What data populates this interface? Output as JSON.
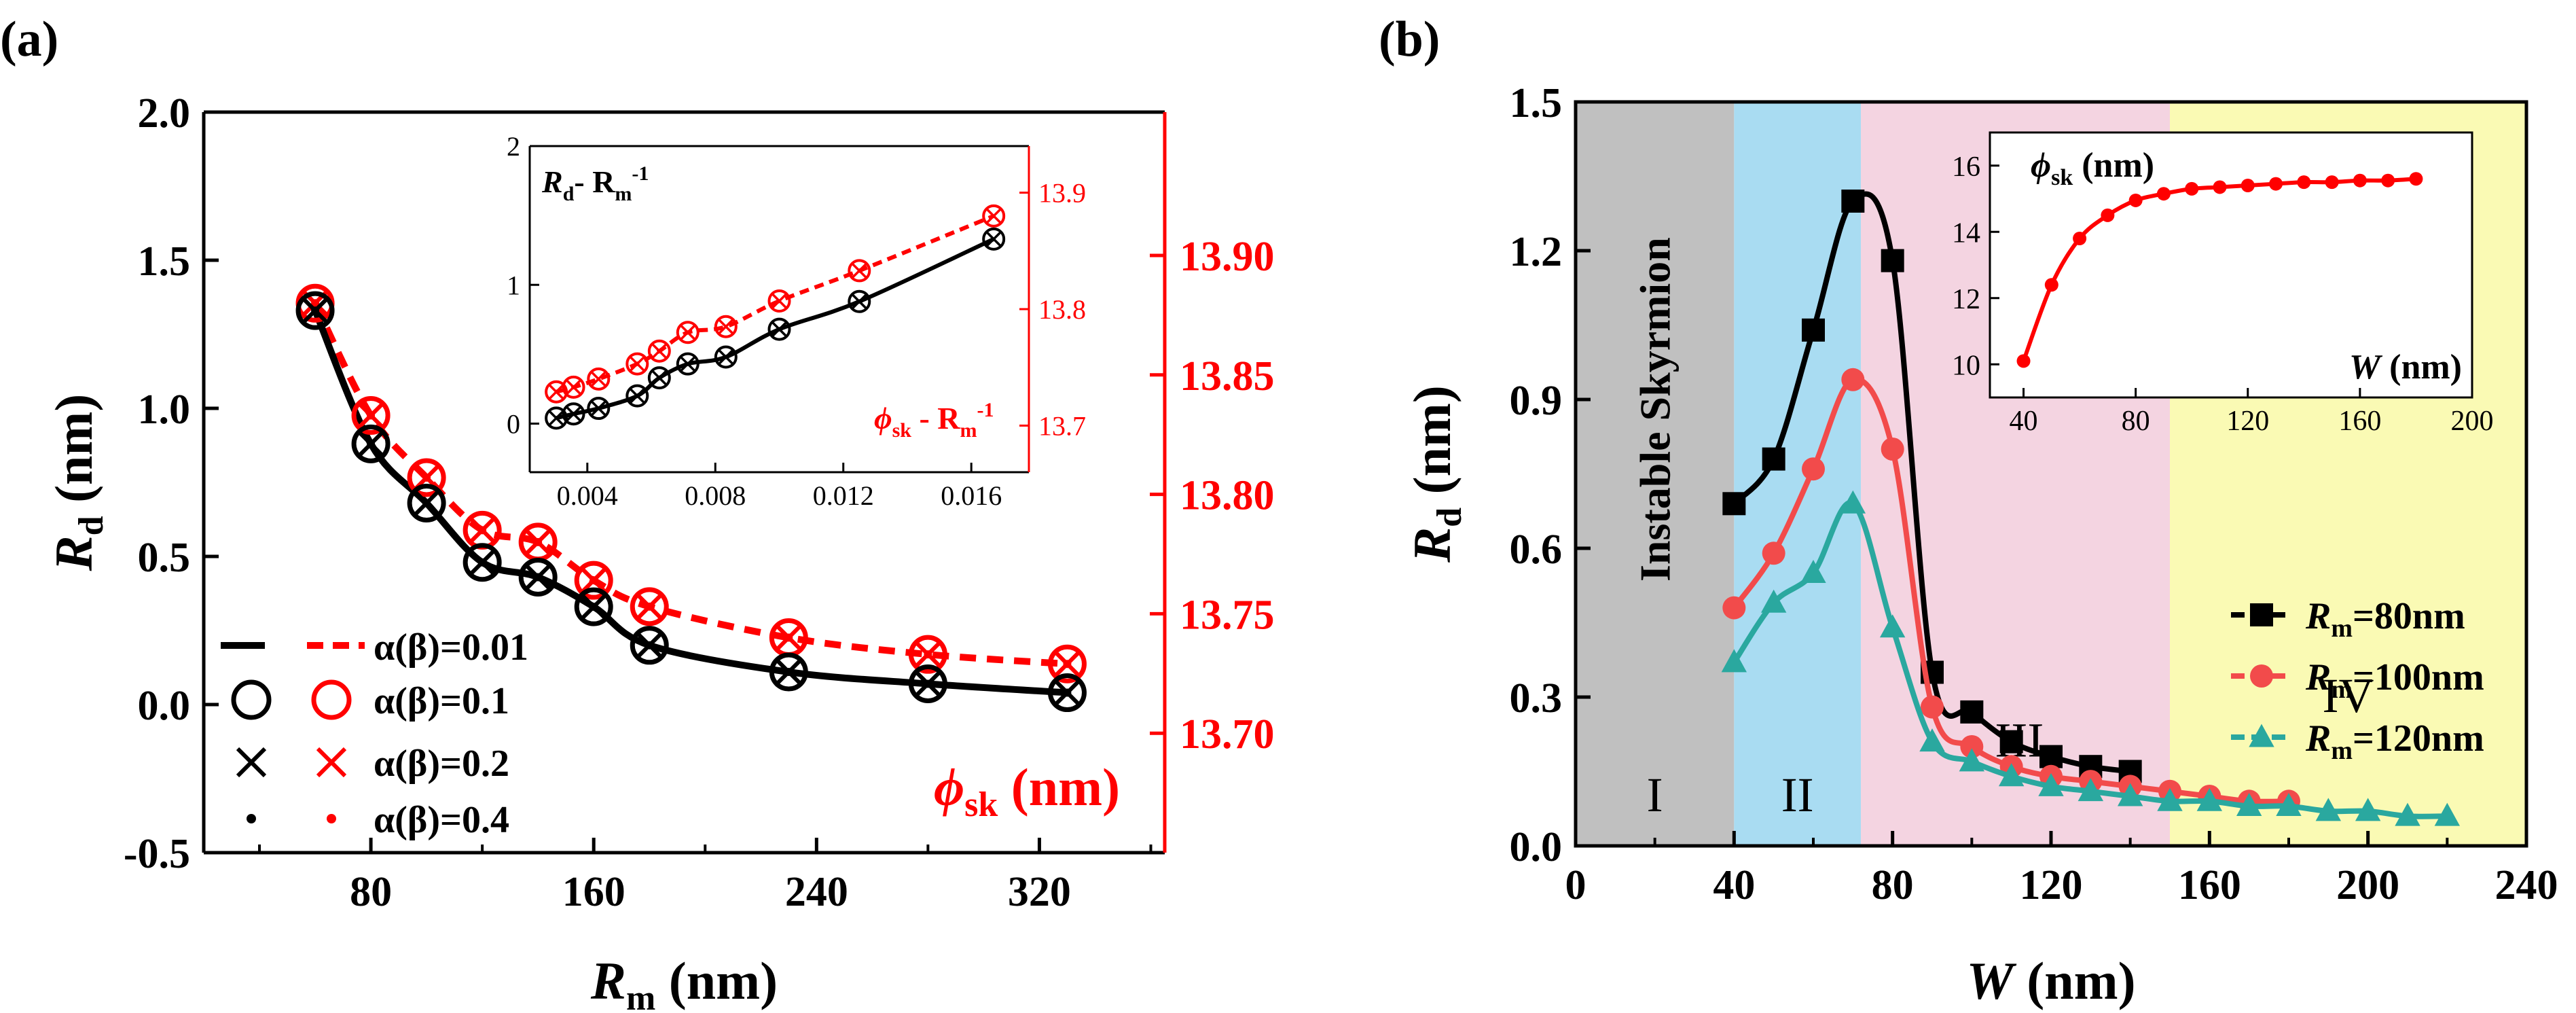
{
  "colors": {
    "black": "#000000",
    "red": "#ff0000",
    "red_b": "#f24b4b",
    "teal": "#2aa89f",
    "region_I": "#c0c0c0",
    "region_II": "#a9dcf2",
    "region_III": "#f4d4e1",
    "region_IV": "#fafab4"
  },
  "chart_data": [
    {
      "panel": "(a)",
      "type": "line",
      "xlabel": "R",
      "xlabel_sub": "m",
      "xlabel_unit": " (nm)",
      "ylabel": "R",
      "ylabel_sub": "d",
      "ylabel_unit": " (nm)",
      "y2label": "ϕ",
      "y2label_sub": "sk",
      "y2label_unit": " (nm)",
      "xlim": [
        20,
        365
      ],
      "ylim": [
        -0.5,
        2.0
      ],
      "y2lim": [
        13.65,
        13.96
      ],
      "xticks": [
        80,
        160,
        240,
        320
      ],
      "yticks": [
        -0.5,
        0.0,
        0.5,
        1.0,
        1.5,
        2.0
      ],
      "yticklabels": [
        "-0.5",
        "0.0",
        "0.5",
        "1.0",
        "1.5",
        "2.0"
      ],
      "y2ticks": [
        13.7,
        13.75,
        13.8,
        13.85,
        13.9
      ],
      "y2ticklabels": [
        "13.70",
        "13.75",
        "13.80",
        "13.85",
        "13.90"
      ],
      "series": [
        {
          "name": "R_d",
          "axis": "left",
          "color": "black",
          "x": [
            60,
            80,
            100,
            120,
            140,
            160,
            180,
            230,
            280,
            330
          ],
          "y": [
            1.33,
            0.88,
            0.68,
            0.48,
            0.43,
            0.33,
            0.2,
            0.11,
            0.07,
            0.04
          ]
        },
        {
          "name": "phi_sk",
          "axis": "right",
          "color": "red",
          "x": [
            60,
            80,
            100,
            120,
            140,
            160,
            180,
            230,
            280,
            330
          ],
          "y": [
            13.88,
            13.833,
            13.807,
            13.785,
            13.78,
            13.764,
            13.753,
            13.74,
            13.733,
            13.729
          ]
        }
      ],
      "legend": {
        "placement": "bottom-left",
        "line_label": "α(β)=0.01",
        "entries": [
          "α(β)=0.01",
          "α(β)=0.1",
          "α(β)=0.2",
          "α(β)=0.4"
        ],
        "rows": [
          {
            "label": "α(β)=0.1",
            "marker": "circle"
          },
          {
            "label": "α(β)=0.2",
            "marker": "cross"
          },
          {
            "label": "α(β)=0.4",
            "marker": "dot"
          }
        ]
      },
      "inset": {
        "label_top": "R",
        "label_top_sub": "d",
        "label_top_mid": "- R",
        "label_top_sub2": "m",
        "label_top_sup": "-1",
        "label_bottom": "ϕ",
        "label_bottom_sub": "sk",
        "label_bottom_mid": " - R",
        "label_bottom_sub2": "m",
        "label_bottom_sup": "-1",
        "xlim": [
          0.0022,
          0.0178
        ],
        "ylim": [
          -0.35,
          2.0
        ],
        "y2lim": [
          13.66,
          13.94
        ],
        "xticks": [
          0.004,
          0.008,
          0.012,
          0.016
        ],
        "xticklabels": [
          "0.004",
          "0.008",
          "0.012",
          "0.016"
        ],
        "yticks": [
          0,
          1,
          2
        ],
        "yticklabels": [
          "0",
          "1",
          "2"
        ],
        "y2ticks": [
          13.7,
          13.8,
          13.9
        ],
        "y2ticklabels": [
          "13.7",
          "13.8",
          "13.9"
        ],
        "x": [
          0.00303,
          0.00357,
          0.00435,
          0.00556,
          0.00625,
          0.00714,
          0.00833,
          0.01,
          0.0125,
          0.0167
        ],
        "rd": [
          0.04,
          0.07,
          0.11,
          0.2,
          0.33,
          0.43,
          0.48,
          0.68,
          0.88,
          1.33
        ],
        "phi": [
          13.729,
          13.733,
          13.74,
          13.753,
          13.764,
          13.78,
          13.785,
          13.807,
          13.833,
          13.88
        ]
      }
    },
    {
      "panel": "(b)",
      "type": "line",
      "xlabel": "W",
      "xlabel_unit": " (nm)",
      "ylabel": "R",
      "ylabel_sub": "d",
      "ylabel_unit": " (nm)",
      "xlim": [
        0,
        240
      ],
      "ylim": [
        0.0,
        1.5
      ],
      "xticks": [
        0,
        40,
        80,
        120,
        160,
        200,
        240
      ],
      "yticks": [
        0.0,
        0.3,
        0.6,
        0.9,
        1.2,
        1.5
      ],
      "yticklabels": [
        "0.0",
        "0.3",
        "0.6",
        "0.9",
        "1.2",
        "1.5"
      ],
      "regions": [
        {
          "label": "I",
          "x0": 0,
          "x1": 40
        },
        {
          "label": "II",
          "x0": 40,
          "x1": 72
        },
        {
          "label": "III",
          "x0": 72,
          "x1": 150
        },
        {
          "label": "IV",
          "x0": 150,
          "x1": 240
        }
      ],
      "region_I_text": "Instable Skyrmion",
      "series": [
        {
          "name": "R_m=80nm",
          "prefix": "R",
          "sub": "m",
          "suffix": "=80nm",
          "marker": "square",
          "color": "black",
          "x": [
            40,
            50,
            60,
            70,
            80,
            90,
            100,
            110,
            120,
            130,
            140
          ],
          "y": [
            0.69,
            0.78,
            1.04,
            1.3,
            1.18,
            0.35,
            0.27,
            0.21,
            0.18,
            0.16,
            0.15
          ]
        },
        {
          "name": "R_m=100nm",
          "prefix": "R",
          "sub": "m",
          "suffix": "=100nm",
          "marker": "circle",
          "color": "red_b",
          "x": [
            40,
            50,
            60,
            70,
            80,
            90,
            100,
            110,
            120,
            130,
            140,
            150,
            160,
            170,
            180
          ],
          "y": [
            0.48,
            0.59,
            0.76,
            0.94,
            0.8,
            0.28,
            0.2,
            0.16,
            0.14,
            0.13,
            0.12,
            0.11,
            0.1,
            0.09,
            0.09
          ]
        },
        {
          "name": "R_m=120nm",
          "prefix": "R",
          "sub": "m",
          "suffix": "=120nm",
          "marker": "triangle",
          "color": "teal",
          "x": [
            40,
            50,
            60,
            70,
            80,
            90,
            100,
            110,
            120,
            130,
            140,
            150,
            160,
            170,
            180,
            190,
            200,
            210,
            220
          ],
          "y": [
            0.37,
            0.49,
            0.55,
            0.69,
            0.44,
            0.21,
            0.17,
            0.14,
            0.12,
            0.11,
            0.1,
            0.09,
            0.09,
            0.08,
            0.08,
            0.07,
            0.07,
            0.06,
            0.06
          ]
        }
      ],
      "inset": {
        "ylabel": "ϕ",
        "ylabel_sub": "sk",
        "ylabel_unit": " (nm)",
        "xlabel": "W",
        "xlabel_unit": " (nm)",
        "xlim": [
          28,
          200
        ],
        "ylim": [
          9,
          17
        ],
        "xticks": [
          40,
          80,
          120,
          160,
          200
        ],
        "yticks": [
          10,
          12,
          14,
          16
        ],
        "x": [
          40,
          50,
          60,
          70,
          80,
          90,
          100,
          110,
          120,
          130,
          140,
          150,
          160,
          170,
          180
        ],
        "y": [
          10.1,
          12.4,
          13.8,
          14.5,
          14.95,
          15.15,
          15.3,
          15.35,
          15.4,
          15.45,
          15.5,
          15.5,
          15.55,
          15.55,
          15.6
        ]
      }
    }
  ]
}
